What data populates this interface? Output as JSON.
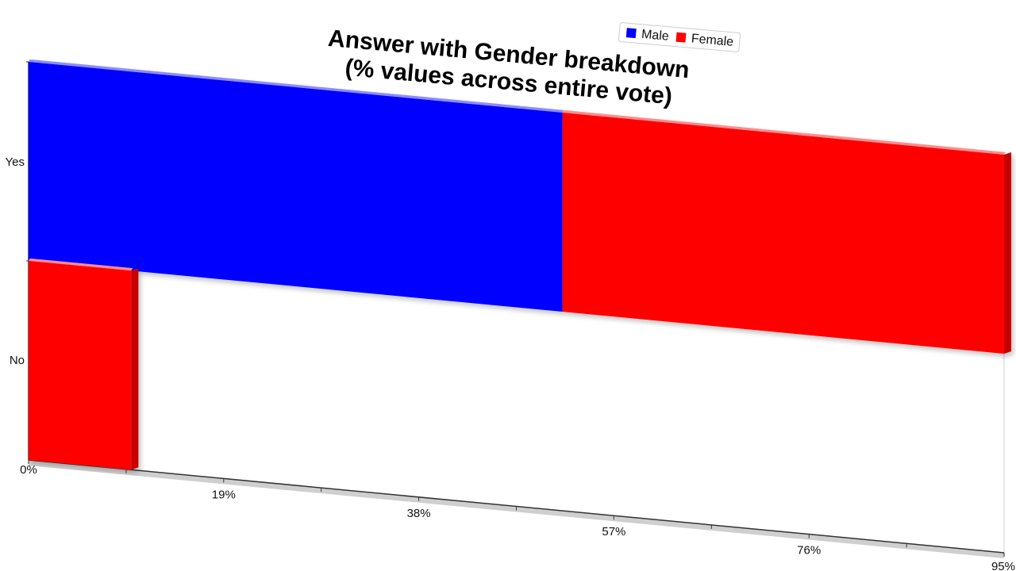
{
  "chart_data": {
    "type": "bar",
    "orientation": "horizontal",
    "stacked": true,
    "title": [
      "Answer with Gender breakdown",
      "(% values across entire vote)"
    ],
    "categories": [
      "Yes",
      "No"
    ],
    "series": [
      {
        "name": "Male",
        "values": [
          52,
          0
        ],
        "color": "#0000ff"
      },
      {
        "name": "Female",
        "values": [
          43,
          10
        ],
        "color": "#ff0000"
      }
    ],
    "xlim": [
      0,
      95
    ],
    "x_ticks": [
      "0%",
      "19%",
      "38%",
      "57%",
      "76%",
      "95%"
    ],
    "legend_position": "top-right",
    "grid": false
  }
}
